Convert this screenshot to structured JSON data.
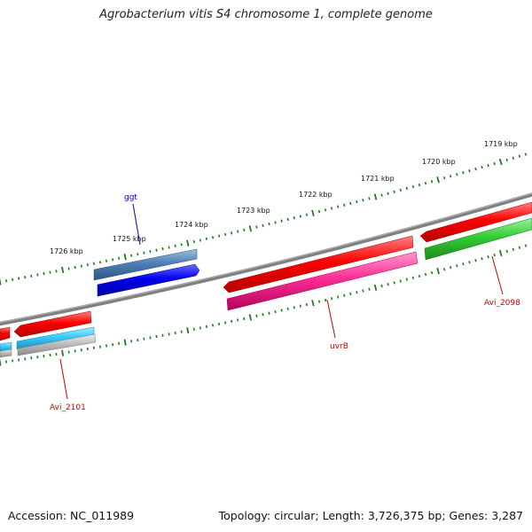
{
  "title": "Agrobacterium vitis S4 chromosome 1, complete genome",
  "footer": {
    "accession": "Accession: NC_011989",
    "summary": "Topology: circular; Length: 3,726,375 bp; Genes: 3,287"
  },
  "ticks": {
    "labels": [
      "1719 kbp",
      "1720 kbp",
      "1721 kbp",
      "1722 kbp",
      "1723 kbp",
      "1724 kbp",
      "1725 kbp",
      "1726 kbp"
    ],
    "color": "#1f7a1f"
  },
  "genes": {
    "ggt": {
      "label": "ggt",
      "color": "#0000cc"
    },
    "uvrB": {
      "label": "uvrB",
      "color": "#cc0000"
    },
    "avi2098": {
      "label": "Avi_2098",
      "color": "#cc0000"
    },
    "avi2101": {
      "label": "Avi_2101",
      "color": "#cc0000"
    }
  },
  "colors": {
    "backbone": "#808080",
    "red": "#ff0000",
    "magenta": "#ff3399",
    "green": "#33cc33",
    "blue": "#0000ee",
    "steelblue": "#4f7fb5",
    "cyan": "#33ccff",
    "grey": "#b8b8b8"
  }
}
